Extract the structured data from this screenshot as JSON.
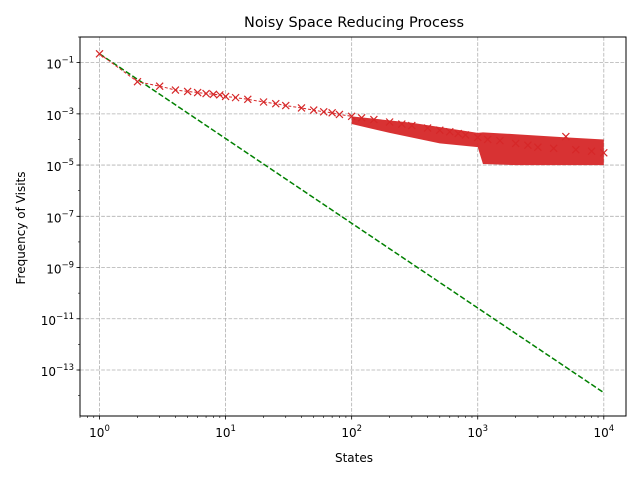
{
  "chart_data": {
    "type": "scatter",
    "title": "Noisy Space Reducing Process",
    "xlabel": "States",
    "ylabel": "Frequency of Visits",
    "xscale": "log",
    "yscale": "log",
    "xlim": [
      0.7,
      15000
    ],
    "ylim": [
      1.6e-15,
      1.0
    ],
    "grid": true,
    "grid_style": "dashed",
    "xticks": [
      {
        "value": 1,
        "base": "10",
        "exp": "0"
      },
      {
        "value": 10,
        "base": "10",
        "exp": "1"
      },
      {
        "value": 100,
        "base": "10",
        "exp": "2"
      },
      {
        "value": 1000,
        "base": "10",
        "exp": "3"
      },
      {
        "value": 10000,
        "base": "10",
        "exp": "4"
      }
    ],
    "yticks": [
      {
        "value": 0.1,
        "base": "10",
        "exp": "−1"
      },
      {
        "value": 0.001,
        "base": "10",
        "exp": "−3"
      },
      {
        "value": 1e-05,
        "base": "10",
        "exp": "−5"
      },
      {
        "value": 1e-07,
        "base": "10",
        "exp": "−7"
      },
      {
        "value": 1e-09,
        "base": "10",
        "exp": "−9"
      },
      {
        "value": 1e-11,
        "base": "10",
        "exp": "−11"
      },
      {
        "value": 1e-13,
        "base": "10",
        "exp": "−13"
      }
    ],
    "series": [
      {
        "kind": "scatter",
        "marker": "x",
        "color": "#d62728",
        "points": [
          [
            1,
            0.22
          ],
          [
            2,
            0.018
          ],
          [
            3,
            0.012
          ],
          [
            4,
            0.0085
          ],
          [
            5,
            0.0075
          ],
          [
            6,
            0.0068
          ],
          [
            7,
            0.0062
          ],
          [
            8,
            0.0058
          ],
          [
            9,
            0.0055
          ],
          [
            10,
            0.0048
          ],
          [
            12,
            0.0043
          ],
          [
            15,
            0.0037
          ],
          [
            20,
            0.0029
          ],
          [
            25,
            0.0025
          ],
          [
            30,
            0.0021
          ],
          [
            40,
            0.0017
          ],
          [
            50,
            0.0014
          ],
          [
            60,
            0.0012
          ],
          [
            70,
            0.0011
          ],
          [
            80,
            0.00095
          ],
          [
            100,
            0.0008
          ],
          [
            120,
            0.0007
          ],
          [
            150,
            0.0006
          ],
          [
            200,
            0.00048
          ],
          [
            250,
            0.0004
          ],
          [
            300,
            0.00035
          ],
          [
            400,
            0.00028
          ],
          [
            500,
            0.00023
          ],
          [
            600,
            0.0002
          ],
          [
            700,
            0.00017
          ],
          [
            800,
            0.00015
          ],
          [
            1000,
            0.00012
          ],
          [
            1200,
            0.0001
          ],
          [
            1500,
            9e-05
          ],
          [
            2000,
            7e-05
          ],
          [
            2500,
            6e-05
          ],
          [
            3000,
            5e-05
          ],
          [
            4000,
            4.5e-05
          ],
          [
            5000,
            0.00013
          ],
          [
            6000,
            4e-05
          ],
          [
            8000,
            3.5e-05
          ],
          [
            10000,
            3e-05
          ]
        ]
      },
      {
        "kind": "line",
        "style": "dashed",
        "color": "#008000",
        "points": [
          [
            1,
            0.22
          ],
          [
            10000,
            1.3e-14
          ]
        ]
      }
    ]
  }
}
